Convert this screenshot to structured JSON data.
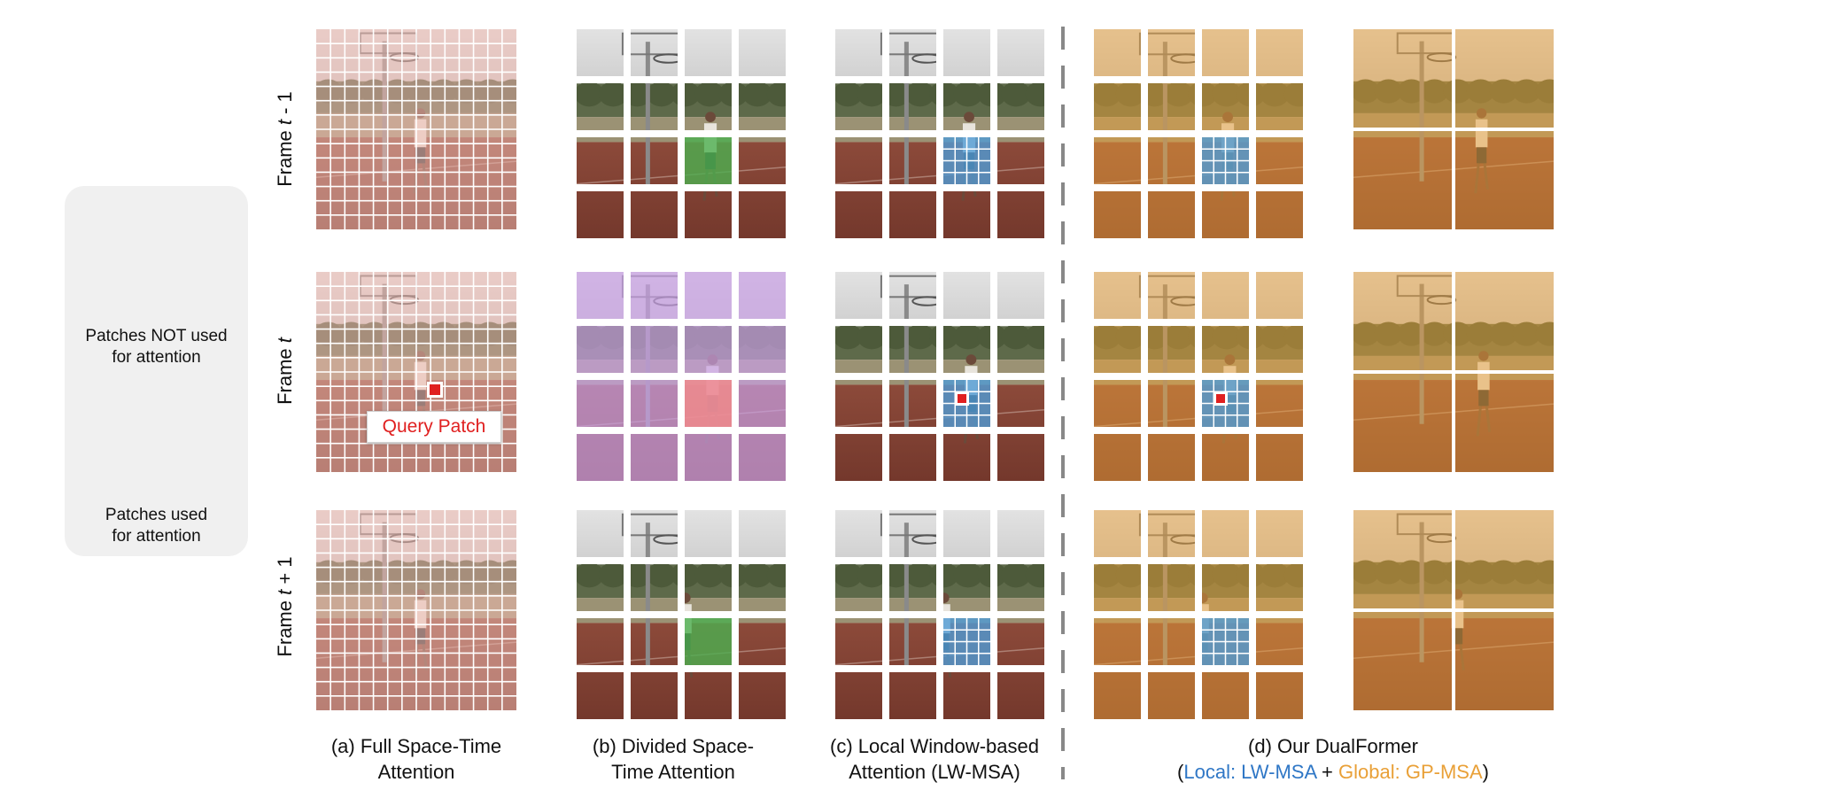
{
  "legend": {
    "not_used_label_1": "Patches NOT used",
    "not_used_label_2": "for attention",
    "used_label_1": "Patches used",
    "used_label_2": "for attention"
  },
  "rows": {
    "frame_prev_prefix": "Frame ",
    "frame_prev_t": "t",
    "frame_prev_suffix": " - 1",
    "frame_cur_prefix": "Frame ",
    "frame_cur_t": "t",
    "frame_next_prefix": "Frame ",
    "frame_next_t": "t",
    "frame_next_suffix": " + 1"
  },
  "query_label": "Query Patch",
  "captions": {
    "a_line1": "(a) Full Space-Time",
    "a_line2": "Attention",
    "b_line1": "(b) Divided Space-",
    "b_line2": "Time Attention",
    "c_line1": "(c) Local Window-based",
    "c_line2": "Attention (LW-MSA)",
    "d_line1": "(d) Our DualFormer",
    "d_open": "(",
    "d_local": "Local: LW-MSA",
    "d_plus": " + ",
    "d_global": "Global: GP-MSA",
    "d_close": ")"
  },
  "colors": {
    "full_attention": "#f0b9b1",
    "divided_spatial": "#f28a8a",
    "divided_temporal": "#4caf50",
    "divided_frame": "#c9a0e6",
    "local_window": "#4f9bd6",
    "dualformer_global": "#e9a037",
    "query_marker": "#e02020",
    "divider": "#888888"
  }
}
